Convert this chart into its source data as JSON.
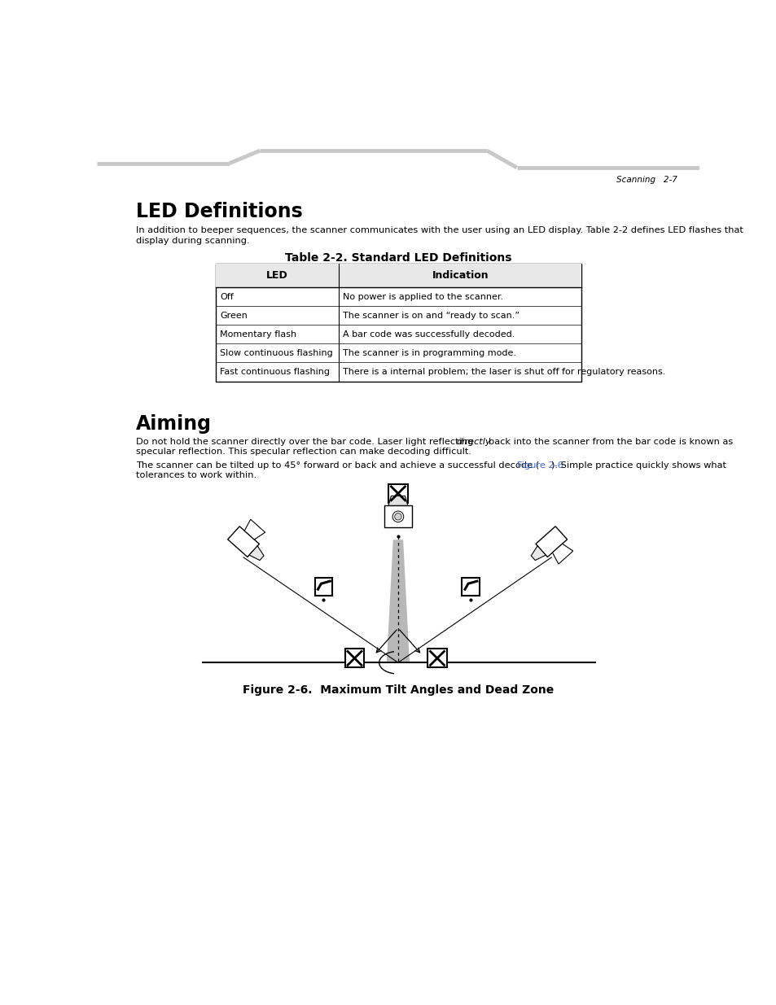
{
  "page_header": "Scanning   2-7",
  "section1_title": "LED Definitions",
  "section1_body1": "In addition to beeper sequences, the scanner communicates with the user using an LED display. Table 2-2 defines LED flashes that",
  "section1_body2": "display during scanning.",
  "table_title": "Table 2-2. Standard LED Definitions",
  "table_col1_header": "LED",
  "table_col2_header": "Indication",
  "table_rows": [
    [
      "Off",
      "No power is applied to the scanner."
    ],
    [
      "Green",
      "The scanner is on and “ready to scan.”"
    ],
    [
      "Momentary flash",
      "A bar code was successfully decoded."
    ],
    [
      "Slow continuous flashing",
      "The scanner is in programming mode."
    ],
    [
      "Fast continuous flashing",
      "There is a internal problem; the laser is shut off for regulatory reasons."
    ]
  ],
  "section2_title": "Aiming",
  "section2_body2": "specular reflection. This specular reflection can make decoding difficult.",
  "section2_body4": "tolerances to work within.",
  "figure_caption": "Figure 2-6.  Maximum Tilt Angles and Dead Zone",
  "bg_color": "#ffffff",
  "text_color": "#000000",
  "link_color": "#4169e1"
}
